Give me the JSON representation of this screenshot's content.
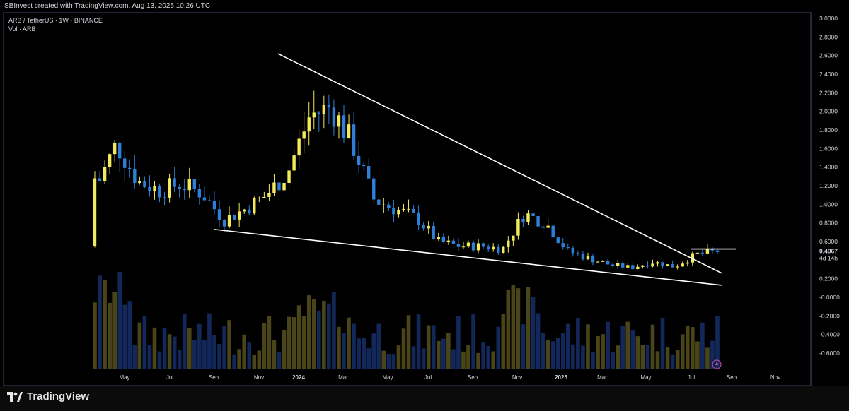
{
  "header": {
    "text": "SBInvest created with TradingView.com, Aug 13, 2025 10:26 UTC"
  },
  "legend": {
    "line1": "ARB / TetherUS · 1W · BINANCE",
    "line2": "Vol · ARB"
  },
  "footer": {
    "brand": "TradingView"
  },
  "colors": {
    "up": "#f2ea5a",
    "down": "#2f7fd8",
    "vol_up": "#4a4518",
    "vol_down": "#13285a",
    "bg": "#000000",
    "line": "#ffffff",
    "text": "#d1d4dc"
  },
  "chart_data": {
    "type": "candlestick",
    "pair": "ARB / TetherUS",
    "interval": "1W",
    "exchange": "BINANCE",
    "y_axis": {
      "ticks": [
        "3.0000",
        "2.8000",
        "2.6000",
        "2.4000",
        "2.2000",
        "2.0000",
        "1.8000",
        "1.6000",
        "1.4000",
        "1.2000",
        "1.0000",
        "0.8000",
        "0.6000",
        "0.4967",
        "0.2000",
        "-0.0000",
        "-0.2000",
        "-0.4000",
        "-0.6000"
      ],
      "ylim": [
        -0.6,
        3.0
      ]
    },
    "x_axis": {
      "ticks": [
        "May",
        "Jul",
        "Sep",
        "Nov",
        "2024",
        "Mar",
        "May",
        "Jul",
        "Sep",
        "Nov",
        "2025",
        "Mar",
        "May",
        "Jul",
        "Sep",
        "Nov"
      ]
    },
    "last_price": "0.4967",
    "countdown": "4d 14h",
    "candles_anchor_values": [
      {
        "x": "2023-03",
        "close": 1.15
      },
      {
        "x": "2023-04",
        "close": 1.65
      },
      {
        "x": "2023-05",
        "close": 1.25
      },
      {
        "x": "2023-06",
        "close": 1.15
      },
      {
        "x": "2023-07",
        "close": 1.22
      },
      {
        "x": "2023-08",
        "close": 1.12
      },
      {
        "x": "2023-09",
        "close": 0.83
      },
      {
        "x": "2023-10",
        "close": 0.95
      },
      {
        "x": "2023-11",
        "close": 1.1
      },
      {
        "x": "2023-12",
        "close": 1.35
      },
      {
        "x": "2024-01",
        "close": 1.95
      },
      {
        "x": "2024-02",
        "close": 2.05
      },
      {
        "x": "2024-03",
        "close": 1.65
      },
      {
        "x": "2024-04",
        "close": 1.05
      },
      {
        "x": "2024-05",
        "close": 0.95
      },
      {
        "x": "2024-06",
        "close": 0.85
      },
      {
        "x": "2024-07",
        "close": 0.6
      },
      {
        "x": "2024-08",
        "close": 0.55
      },
      {
        "x": "2024-09",
        "close": 0.55
      },
      {
        "x": "2024-10",
        "close": 0.52
      },
      {
        "x": "2024-11",
        "close": 0.9
      },
      {
        "x": "2024-12",
        "close": 0.8
      },
      {
        "x": "2025-01",
        "close": 0.5
      },
      {
        "x": "2025-02",
        "close": 0.42
      },
      {
        "x": "2025-03",
        "close": 0.35
      },
      {
        "x": "2025-04",
        "close": 0.32
      },
      {
        "x": "2025-05",
        "close": 0.38
      },
      {
        "x": "2025-06",
        "close": 0.33
      },
      {
        "x": "2025-07",
        "close": 0.46
      },
      {
        "x": "2025-08",
        "close": 0.4967
      }
    ],
    "trendlines": [
      {
        "name": "upper-resistance",
        "from": [
          "2023-12",
          2.62
        ],
        "to": [
          "2025-08",
          0.26
        ]
      },
      {
        "name": "lower-support",
        "from": [
          "2023-09",
          0.73
        ],
        "to": [
          "2025-08",
          0.13
        ]
      },
      {
        "name": "breakout-level",
        "from": [
          "2025-07",
          0.52
        ],
        "to": [
          "2025-08",
          0.52
        ]
      }
    ]
  }
}
